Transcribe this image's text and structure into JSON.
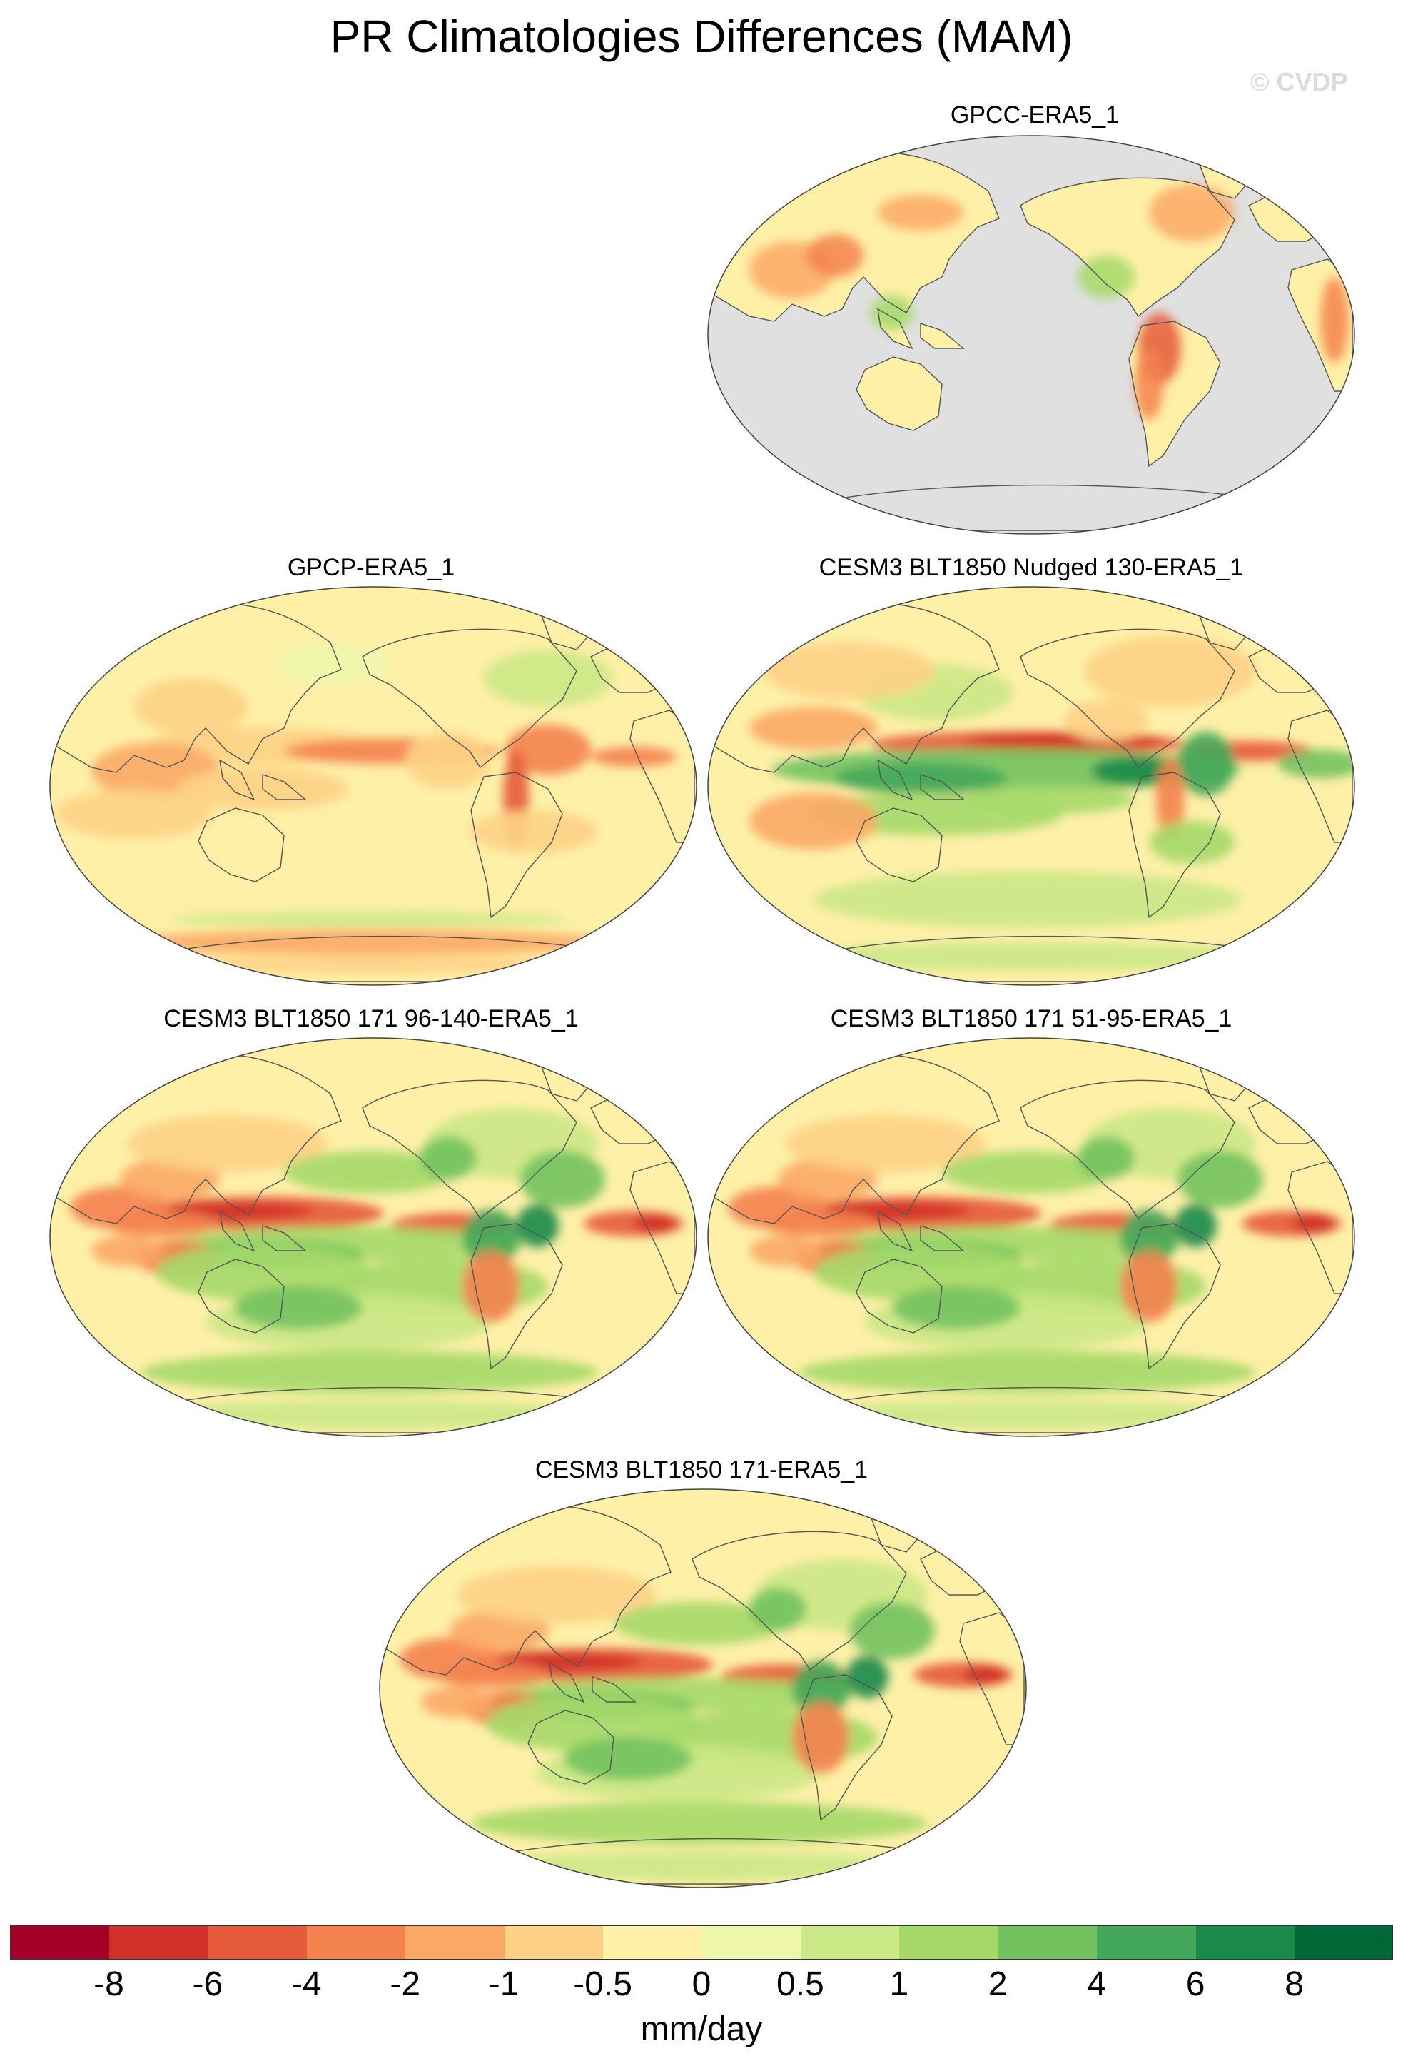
{
  "figure": {
    "title": "PR Climatologies Differences (MAM)",
    "watermark": "© CVDP",
    "land_mask_color": "#e0e0e0",
    "coast_color": "#555555"
  },
  "panels": [
    {
      "name": "GPCC-ERA5_1",
      "masked_ocean": true,
      "pattern": "gpcc"
    },
    {
      "name": "GPCP-ERA5_1",
      "masked_ocean": false,
      "pattern": "gpcp"
    },
    {
      "name": "CESM3 BLT1850 Nudged 130-ERA5_1",
      "masked_ocean": false,
      "pattern": "model"
    },
    {
      "name": "CESM3 BLT1850 171 96-140-ERA5_1",
      "masked_ocean": false,
      "pattern": "model2"
    },
    {
      "name": "CESM3 BLT1850 171 51-95-ERA5_1",
      "masked_ocean": false,
      "pattern": "model2"
    },
    {
      "name": "CESM3 BLT1850 171-ERA5_1",
      "masked_ocean": false,
      "pattern": "model2"
    }
  ],
  "colorbar": {
    "unit": "mm/day",
    "tick_labels": [
      "-8",
      "-6",
      "-4",
      "-2",
      "-1",
      "-0.5",
      "0",
      "0.5",
      "1",
      "2",
      "4",
      "6",
      "8"
    ],
    "colors": [
      "#a50026",
      "#d03027",
      "#e55a3b",
      "#f4824f",
      "#fba866",
      "#fdd286",
      "#fef0a7",
      "#eef6ac",
      "#cbe886",
      "#a5d96a",
      "#72c25f",
      "#44a85a",
      "#1a8a4a",
      "#006837"
    ]
  }
}
